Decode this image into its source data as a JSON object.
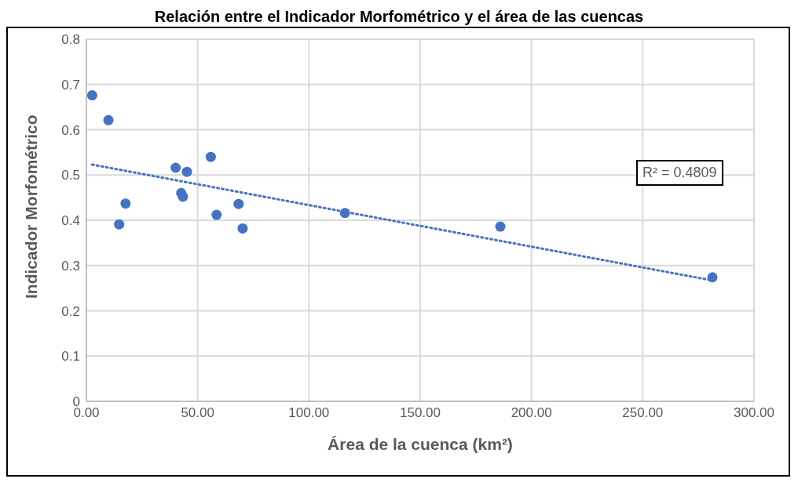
{
  "chart_data": {
    "type": "scatter",
    "title": "Relación entre el Indicador Morfométrico y el área de las cuencas",
    "xlabel": "Área de la cuenca (km²)",
    "ylabel": "Indicador Morfométrico",
    "series": [
      {
        "color": "#4472c4",
        "marker": "circle",
        "x": [
          2.6,
          9.9,
          14.7,
          17.6,
          40.1,
          45.2,
          42.6,
          43.4,
          55.9,
          58.5,
          68.4,
          70.2,
          116.2,
          186.0,
          281.3
        ],
        "values": [
          0.676,
          0.621,
          0.391,
          0.437,
          0.516,
          0.507,
          0.46,
          0.452,
          0.54,
          0.412,
          0.436,
          0.382,
          0.416,
          0.386,
          0.274
        ]
      },
      {
        "type": "line",
        "color": "#4472c4",
        "marker": "none",
        "line_style": "dotted",
        "x": [
          2.6,
          281.3
        ],
        "values": [
          0.523,
          0.267
        ]
      }
    ],
    "annotations": [
      "R² = 0.4809"
    ],
    "xlim": [
      0,
      300
    ],
    "xticks": [
      {
        "value": 0,
        "label": "0.00"
      },
      {
        "value": 50,
        "label": "50.00"
      },
      {
        "value": 100,
        "label": "100.00"
      },
      {
        "value": 150,
        "label": "150.00"
      },
      {
        "value": 200,
        "label": "200.00"
      },
      {
        "value": 250,
        "label": "250.00"
      },
      {
        "value": 300,
        "label": "300.00"
      }
    ],
    "ylim": [
      0,
      0.8
    ],
    "yticks": [
      0,
      0.1,
      0.2,
      0.3,
      0.4,
      0.5,
      0.6,
      0.7,
      0.8
    ],
    "grid": true
  }
}
